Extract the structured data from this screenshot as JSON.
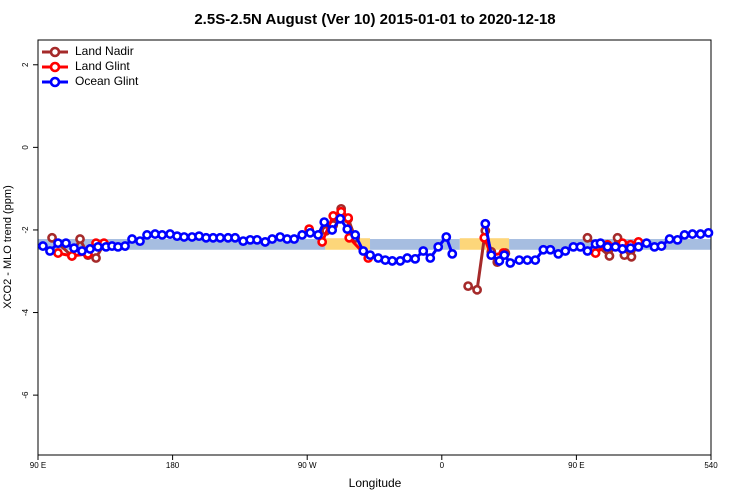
{
  "chart_data": {
    "type": "line",
    "title": "2.5S-2.5N August (Ver 10)   2015-01-01 to 2020-12-18",
    "x_label": "Longitude",
    "y_label": "XCO2 - MLO trend (ppm)",
    "xlim": [
      90,
      540
    ],
    "ylim": [
      -7.45,
      2.6
    ],
    "xticks": [
      {
        "value": 90,
        "label": "90 E"
      },
      180,
      {
        "value": 270,
        "label": "90 W"
      },
      {
        "value": 360,
        "label": "0"
      },
      {
        "value": 450,
        "label": "90 E"
      },
      540
    ],
    "yticks": [
      2,
      0,
      -2,
      -4,
      -6
    ],
    "legend": "top-left",
    "bands": [
      {
        "color": "#fdd67a",
        "x": [
          282,
          312
        ],
        "lower": -2.48,
        "upper": -2.2
      },
      {
        "color": "#fdd67a",
        "x": [
          372,
          405
        ],
        "lower": -2.48,
        "upper": -2.2
      },
      {
        "color": "#a6bde0",
        "x": [
          90,
          282
        ],
        "lower": -2.48,
        "upper": -2.22
      },
      {
        "color": "#a6bde0",
        "x": [
          312,
          372
        ],
        "lower": -2.48,
        "upper": -2.22
      },
      {
        "color": "#a6bde0",
        "x": [
          405,
          540
        ],
        "lower": -2.48,
        "upper": -2.22
      }
    ],
    "series": [
      {
        "name": "Land Nadir",
        "color": "#a52a2a",
        "x": [
          99.4,
          112.7,
          118.1,
          123.4,
          128.8,
          134.1,
          null,
          282.7,
          287.4,
          292.7,
          297.4,
          302.1,
          null,
          377.6,
          383.6,
          389.1,
          393.1,
          397.1,
          402.5,
          null,
          457.4,
          472.1,
          477.5,
          482.1,
          486.8,
          490.9
        ],
        "values": [
          -2.19,
          -2.63,
          -2.22,
          -2.61,
          -2.68,
          -2.34,
          null,
          -2.02,
          -1.88,
          -1.49,
          -1.73,
          -2.19,
          null,
          -3.36,
          -3.45,
          -2.02,
          -2.53,
          -2.78,
          -2.56,
          null,
          -2.19,
          -2.63,
          -2.19,
          -2.61,
          -2.65,
          -2.34
        ]
      },
      {
        "name": "Land Glint",
        "color": "#ff0000",
        "x": [
          103.4,
          112.7,
          123.4,
          128.8,
          134.1,
          null,
          271.3,
          280.0,
          287.4,
          292.7,
          297.4,
          298.1,
          310.8,
          null,
          388.4,
          393.1,
          401.1,
          null,
          462.8,
          470.8,
          480.8,
          486.2,
          491.5
        ],
        "values": [
          -2.56,
          -2.63,
          -2.58,
          -2.32,
          -2.32,
          null,
          -1.98,
          -2.29,
          -1.66,
          -1.56,
          -1.71,
          -2.19,
          -2.68,
          null,
          -2.19,
          -2.61,
          -2.56,
          null,
          -2.56,
          -2.36,
          -2.32,
          -2.36,
          -2.29
        ]
      },
      {
        "name": "Ocean Glint",
        "color": "#0000ff",
        "x": [
          93.3,
          98.0,
          103.4,
          108.7,
          114.1,
          119.4,
          124.8,
          130.1,
          135.5,
          139.5,
          143.5,
          148.2,
          152.9,
          158.2,
          162.9,
          168.3,
          173.0,
          178.3,
          183.0,
          187.7,
          193.0,
          197.7,
          202.4,
          207.1,
          211.8,
          217.1,
          221.8,
          227.2,
          231.9,
          236.5,
          241.9,
          246.6,
          251.9,
          256.6,
          261.3,
          266.6,
          272.0,
          277.3,
          281.4,
          286.7,
          292.1,
          296.8,
          302.1,
          307.5,
          312.1,
          317.5,
          322.2,
          326.9,
          332.2,
          336.9,
          342.2,
          347.6,
          352.3,
          357.6,
          363.0,
          367.0,
          null,
          389.1,
          393.1,
          398.5,
          401.8,
          405.8,
          411.8,
          417.2,
          422.5,
          427.9,
          432.6,
          437.9,
          442.6,
          448.0,
          452.7,
          457.4,
          462.8,
          466.1,
          470.8,
          476.1,
          480.8,
          486.2,
          491.5,
          496.9,
          502.2,
          506.9,
          512.3,
          517.6,
          522.3,
          527.6,
          533.0,
          538.3
        ],
        "values": [
          -2.39,
          -2.51,
          -2.32,
          -2.32,
          -2.44,
          -2.51,
          -2.46,
          -2.41,
          -2.41,
          -2.39,
          -2.41,
          -2.39,
          -2.22,
          -2.27,
          -2.12,
          -2.1,
          -2.12,
          -2.1,
          -2.15,
          -2.17,
          -2.17,
          -2.15,
          -2.19,
          -2.19,
          -2.19,
          -2.19,
          -2.19,
          -2.27,
          -2.24,
          -2.24,
          -2.29,
          -2.22,
          -2.17,
          -2.22,
          -2.22,
          -2.12,
          -2.07,
          -2.12,
          -1.81,
          -2.0,
          -1.73,
          -1.98,
          -2.12,
          -2.51,
          -2.61,
          -2.68,
          -2.73,
          -2.75,
          -2.75,
          -2.68,
          -2.7,
          -2.51,
          -2.68,
          -2.41,
          -2.17,
          -2.58,
          null,
          -1.85,
          -2.61,
          -2.75,
          -2.61,
          -2.8,
          -2.73,
          -2.73,
          -2.73,
          -2.48,
          -2.48,
          -2.58,
          -2.51,
          -2.41,
          -2.41,
          -2.51,
          -2.34,
          -2.32,
          -2.41,
          -2.41,
          -2.46,
          -2.44,
          -2.41,
          -2.32,
          -2.41,
          -2.39,
          -2.22,
          -2.24,
          -2.12,
          -2.1,
          -2.1,
          -2.07
        ]
      }
    ]
  }
}
